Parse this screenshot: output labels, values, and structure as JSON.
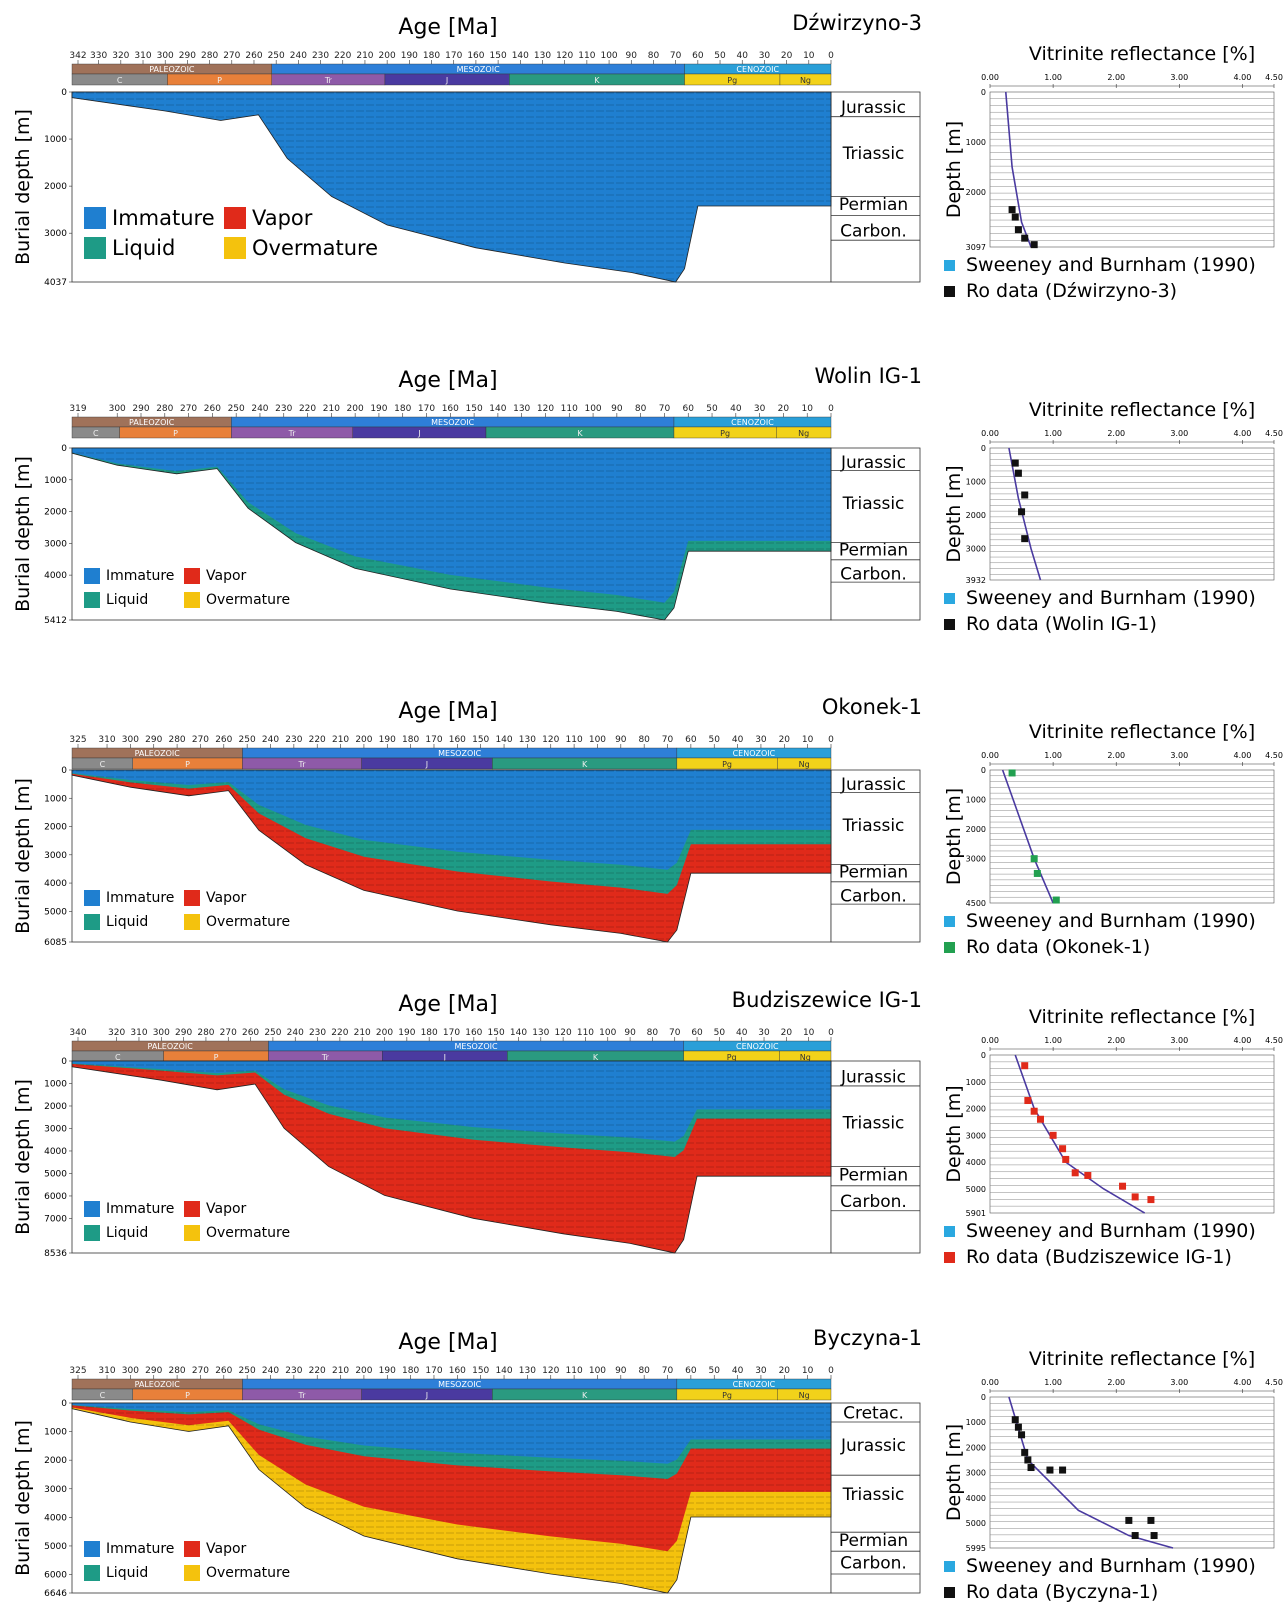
{
  "colors": {
    "immature": "#1f7fd0",
    "liquid": "#1e9b86",
    "vapor": "#e02a1a",
    "overmature": "#f4c20d",
    "paleozoic": "#a0725a",
    "mesozoic": "#2e7fd8",
    "cenozoic": "#2a9fd8",
    "C": "#8a8a8a",
    "P": "#e8803a",
    "Tr": "#8e5aa8",
    "J": "#4a3aa0",
    "K": "#2a9a80",
    "Pg": "#f2d21a",
    "Ng": "#f2d21a",
    "sweeney": "#2aa8e0",
    "ro_black": "#111111",
    "ro_green": "#22a050",
    "ro_red": "#e02a1a"
  },
  "legend": {
    "immature": "Immature",
    "vapor": "Vapor",
    "liquid": "Liquid",
    "overmature": "Overmature"
  },
  "common": {
    "age_title": "Age [Ma]",
    "burial_label": "Burial depth [m]",
    "vr_title": "Vitrinite reflectance [%]",
    "depth_label": "Depth [m]",
    "sweeney_label": "Sweeney and Burnham (1990)",
    "vr_ticks": [
      "0.00",
      "1.00",
      "2.00",
      "3.00",
      "4.00",
      "4.50"
    ]
  },
  "chart_data": [
    {
      "well": "Dźwirzyno-3",
      "type": "area",
      "age_ticks": [
        "342",
        "330",
        "320",
        "310",
        "300",
        "290",
        "280",
        "270",
        "260",
        "250",
        "240",
        "230",
        "220",
        "210",
        "200",
        "190",
        "180",
        "170",
        "160",
        "150",
        "140",
        "130",
        "120",
        "110",
        "100",
        "90",
        "80",
        "70",
        "60",
        "50",
        "40",
        "30",
        "20",
        "10",
        "0"
      ],
      "age_start": 342,
      "max_depth": 4037,
      "depth_ticks": [
        "0",
        "1000",
        "2000",
        "3000",
        "4037"
      ],
      "eras": [
        "PALEOZOIC",
        "MESOZOIC",
        "CENOZOIC"
      ],
      "periods": [
        "C",
        "P",
        "Tr",
        "J",
        "K",
        "Pg",
        "Ng"
      ],
      "formations": [
        "Jurassic",
        "Triassic",
        "Permian",
        "Carbon."
      ],
      "vr_depth_ticks": [
        "0",
        "1000",
        "2000",
        "3097"
      ],
      "vr_max": 3097,
      "ro_label": "Ro data (Dźwirzyno-3)",
      "ro_color": "#111111",
      "ro_points": [
        [
          0.35,
          2350
        ],
        [
          0.4,
          2500
        ],
        [
          0.45,
          2750
        ],
        [
          0.55,
          2920
        ],
        [
          0.7,
          3050
        ]
      ],
      "curve": [
        [
          0.25,
          0
        ],
        [
          0.35,
          1500
        ],
        [
          0.5,
          2600
        ],
        [
          0.65,
          3097
        ]
      ]
    },
    {
      "well": "Wolin IG-1",
      "type": "area",
      "age_ticks": [
        "319",
        "300",
        "290",
        "280",
        "270",
        "260",
        "250",
        "240",
        "230",
        "220",
        "210",
        "200",
        "190",
        "180",
        "170",
        "160",
        "150",
        "140",
        "130",
        "120",
        "110",
        "100",
        "90",
        "80",
        "70",
        "60",
        "50",
        "40",
        "30",
        "20",
        "10",
        "0"
      ],
      "age_start": 319,
      "max_depth": 5412,
      "depth_ticks": [
        "0",
        "1000",
        "2000",
        "3000",
        "4000",
        "5412"
      ],
      "eras": [
        "PALEOZOIC",
        "MESOZOIC",
        "CENOZOIC"
      ],
      "periods": [
        "C",
        "P",
        "Tr",
        "J",
        "K",
        "Pg",
        "Ng"
      ],
      "formations": [
        "Jurassic",
        "Triassic",
        "Permian",
        "Carbon."
      ],
      "vr_depth_ticks": [
        "0",
        "1000",
        "2000",
        "3000",
        "3932"
      ],
      "vr_max": 3932,
      "ro_label": "Ro data (Wolin IG-1)",
      "ro_color": "#111111",
      "ro_points": [
        [
          0.4,
          450
        ],
        [
          0.45,
          750
        ],
        [
          0.55,
          1400
        ],
        [
          0.5,
          1900
        ],
        [
          0.55,
          2700
        ]
      ],
      "curve": [
        [
          0.3,
          0
        ],
        [
          0.45,
          1500
        ],
        [
          0.65,
          3000
        ],
        [
          0.8,
          3932
        ]
      ]
    },
    {
      "well": "Okonek-1",
      "type": "area",
      "age_ticks": [
        "325",
        "310",
        "300",
        "290",
        "280",
        "270",
        "260",
        "250",
        "240",
        "230",
        "220",
        "210",
        "200",
        "190",
        "180",
        "170",
        "160",
        "150",
        "140",
        "130",
        "120",
        "110",
        "100",
        "90",
        "80",
        "70",
        "60",
        "50",
        "40",
        "30",
        "20",
        "10",
        "0"
      ],
      "age_start": 325,
      "max_depth": 6085,
      "depth_ticks": [
        "0",
        "1000",
        "2000",
        "3000",
        "4000",
        "5000",
        "6085"
      ],
      "eras": [
        "PALEOZOIC",
        "MESOZOIC",
        "CENOZOIC"
      ],
      "periods": [
        "C",
        "P",
        "Tr",
        "J",
        "K",
        "Pg",
        "Ng"
      ],
      "formations": [
        "Jurassic",
        "Triassic",
        "Permian",
        "Carbon."
      ],
      "vr_depth_ticks": [
        "0",
        "1000",
        "2000",
        "3000",
        "4500"
      ],
      "vr_max": 4500,
      "ro_label": "Ro data (Okonek-1)",
      "ro_color": "#22a050",
      "ro_points": [
        [
          0.35,
          100
        ],
        [
          0.7,
          3000
        ],
        [
          0.75,
          3500
        ],
        [
          1.05,
          4400
        ]
      ],
      "curve": [
        [
          0.2,
          0
        ],
        [
          0.45,
          1500
        ],
        [
          0.7,
          3000
        ],
        [
          1.0,
          4500
        ]
      ]
    },
    {
      "well": "Budziszewice IG-1",
      "type": "area",
      "age_ticks": [
        "340",
        "320",
        "310",
        "300",
        "290",
        "280",
        "270",
        "260",
        "250",
        "240",
        "230",
        "220",
        "210",
        "200",
        "190",
        "180",
        "170",
        "160",
        "150",
        "140",
        "130",
        "120",
        "110",
        "100",
        "90",
        "80",
        "70",
        "60",
        "50",
        "40",
        "30",
        "20",
        "10",
        "0"
      ],
      "age_start": 340,
      "max_depth": 8536,
      "depth_ticks": [
        "0",
        "1000",
        "2000",
        "3000",
        "4000",
        "5000",
        "6000",
        "7000",
        "8536"
      ],
      "eras": [
        "PALEOZOIC",
        "MESOZOIC",
        "CENOZOIC"
      ],
      "periods": [
        "C",
        "P",
        "Tr",
        "J",
        "K",
        "Pg",
        "Ng"
      ],
      "formations": [
        "Jurassic",
        "Triassic",
        "Permian",
        "Carbon."
      ],
      "vr_depth_ticks": [
        "0",
        "1000",
        "2000",
        "3000",
        "4000",
        "5000",
        "5901"
      ],
      "vr_max": 5901,
      "ro_label": "Ro data (Budziszewice IG-1)",
      "ro_color": "#e02a1a",
      "ro_points": [
        [
          0.55,
          400
        ],
        [
          0.6,
          1700
        ],
        [
          0.7,
          2100
        ],
        [
          0.8,
          2400
        ],
        [
          1.0,
          3000
        ],
        [
          1.15,
          3500
        ],
        [
          1.2,
          3900
        ],
        [
          1.35,
          4400
        ],
        [
          1.55,
          4500
        ],
        [
          2.1,
          4900
        ],
        [
          2.3,
          5300
        ],
        [
          2.55,
          5400
        ]
      ],
      "curve": [
        [
          0.4,
          0
        ],
        [
          0.7,
          2000
        ],
        [
          1.2,
          4000
        ],
        [
          1.8,
          5000
        ],
        [
          2.45,
          5901
        ]
      ]
    },
    {
      "well": "Byczyna-1",
      "type": "area",
      "age_ticks": [
        "325",
        "310",
        "300",
        "290",
        "280",
        "270",
        "260",
        "250",
        "240",
        "230",
        "220",
        "210",
        "200",
        "190",
        "180",
        "170",
        "160",
        "150",
        "140",
        "130",
        "120",
        "110",
        "100",
        "90",
        "80",
        "70",
        "60",
        "50",
        "40",
        "30",
        "20",
        "10",
        "0"
      ],
      "age_start": 325,
      "max_depth": 6646,
      "depth_ticks": [
        "0",
        "1000",
        "2000",
        "3000",
        "4000",
        "5000",
        "6000",
        "6646"
      ],
      "eras": [
        "PALEOZOIC",
        "MESOZOIC",
        "CENOZOIC"
      ],
      "periods": [
        "C",
        "P",
        "Tr",
        "J",
        "K",
        "Pg",
        "Ng"
      ],
      "formations": [
        "Cretac.",
        "Jurassic",
        "Triassic",
        "Permian",
        "Carbon."
      ],
      "vr_depth_ticks": [
        "0",
        "1000",
        "2000",
        "3000",
        "4000",
        "5000",
        "5995"
      ],
      "vr_max": 5995,
      "ro_label": "Ro data (Byczyna-1)",
      "ro_color": "#111111",
      "ro_points": [
        [
          0.4,
          900
        ],
        [
          0.45,
          1200
        ],
        [
          0.5,
          1500
        ],
        [
          0.55,
          2200
        ],
        [
          0.6,
          2500
        ],
        [
          0.65,
          2800
        ],
        [
          0.95,
          2900
        ],
        [
          1.15,
          2900
        ],
        [
          2.2,
          4900
        ],
        [
          2.55,
          4900
        ],
        [
          2.3,
          5500
        ],
        [
          2.6,
          5500
        ]
      ],
      "curve": [
        [
          0.3,
          0
        ],
        [
          0.6,
          2500
        ],
        [
          1.4,
          4500
        ],
        [
          2.2,
          5500
        ],
        [
          2.9,
          5995
        ]
      ]
    }
  ]
}
